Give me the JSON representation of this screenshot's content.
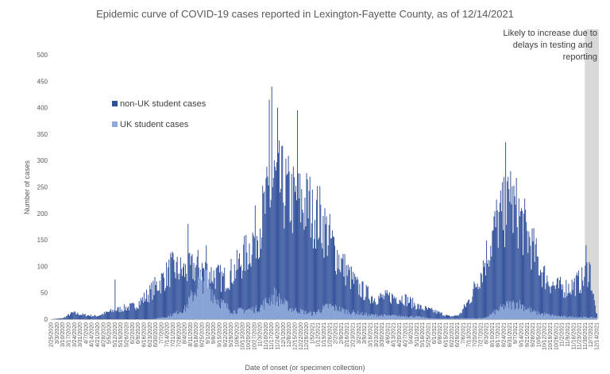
{
  "chart_data": {
    "type": "bar",
    "stacked": true,
    "title": "Epidemic curve of COVID-19 cases reported in Lexington-Fayette County, as of 12/14/2021",
    "xlabel": "Date of onset (or specimen collection)",
    "ylabel": "Number of cases",
    "ylim": [
      0,
      500
    ],
    "y_ticks": [
      0,
      50,
      100,
      150,
      200,
      250,
      300,
      350,
      400,
      450,
      500
    ],
    "grid": false,
    "legend_position": "top-left",
    "x_range": [
      "2/25/2020",
      "12/14/2021"
    ],
    "x_tick_interval_days": 7,
    "series": [
      {
        "name": "non-UK student cases",
        "color": "#2F4F9A",
        "description": "daily counts interpolated between anchor points (date, cases)",
        "anchors": [
          [
            "2020-02-25",
            0
          ],
          [
            "2020-03-10",
            2
          ],
          [
            "2020-03-22",
            12
          ],
          [
            "2020-04-05",
            8
          ],
          [
            "2020-04-20",
            6
          ],
          [
            "2020-05-05",
            14
          ],
          [
            "2020-05-20",
            20
          ],
          [
            "2020-06-05",
            25
          ],
          [
            "2020-06-20",
            45
          ],
          [
            "2020-07-05",
            70
          ],
          [
            "2020-07-20",
            95
          ],
          [
            "2020-08-05",
            90
          ],
          [
            "2020-08-20",
            100
          ],
          [
            "2020-09-05",
            85
          ],
          [
            "2020-09-20",
            75
          ],
          [
            "2020-10-05",
            95
          ],
          [
            "2020-10-20",
            130
          ],
          [
            "2020-11-05",
            190
          ],
          [
            "2020-11-20",
            260
          ],
          [
            "2020-12-01",
            245
          ],
          [
            "2020-12-15",
            220
          ],
          [
            "2021-01-01",
            215
          ],
          [
            "2021-01-15",
            190
          ],
          [
            "2021-02-01",
            130
          ],
          [
            "2021-02-15",
            90
          ],
          [
            "2021-03-01",
            60
          ],
          [
            "2021-03-20",
            40
          ],
          [
            "2021-04-10",
            42
          ],
          [
            "2021-04-25",
            40
          ],
          [
            "2021-05-15",
            22
          ],
          [
            "2021-06-01",
            15
          ],
          [
            "2021-06-20",
            5
          ],
          [
            "2021-07-01",
            8
          ],
          [
            "2021-07-15",
            40
          ],
          [
            "2021-08-01",
            110
          ],
          [
            "2021-08-15",
            180
          ],
          [
            "2021-08-31",
            215
          ],
          [
            "2021-09-10",
            200
          ],
          [
            "2021-09-25",
            145
          ],
          [
            "2021-10-10",
            85
          ],
          [
            "2021-10-25",
            60
          ],
          [
            "2021-11-10",
            60
          ],
          [
            "2021-11-28",
            75
          ],
          [
            "2021-12-05",
            100
          ],
          [
            "2021-12-10",
            40
          ],
          [
            "2021-12-14",
            8
          ]
        ],
        "spikes": [
          [
            "2020-05-12",
            75
          ],
          [
            "2020-07-18",
            125
          ],
          [
            "2020-08-08",
            180
          ],
          [
            "2020-08-30",
            140
          ],
          [
            "2020-11-14",
            415
          ],
          [
            "2020-11-17",
            440
          ],
          [
            "2020-11-24",
            400
          ],
          [
            "2020-12-18",
            395
          ],
          [
            "2021-01-05",
            245
          ],
          [
            "2021-08-26",
            335
          ],
          [
            "2021-09-01",
            280
          ],
          [
            "2021-12-01",
            140
          ]
        ]
      },
      {
        "name": "UK student cases",
        "color": "#8EA9DB",
        "description": "daily counts interpolated between anchor points (date, cases)",
        "anchors": [
          [
            "2020-02-25",
            0
          ],
          [
            "2020-06-25",
            0
          ],
          [
            "2020-07-15",
            5
          ],
          [
            "2020-08-05",
            20
          ],
          [
            "2020-08-20",
            65
          ],
          [
            "2020-08-28",
            85
          ],
          [
            "2020-09-10",
            40
          ],
          [
            "2020-10-01",
            15
          ],
          [
            "2020-11-01",
            20
          ],
          [
            "2020-11-20",
            45
          ],
          [
            "2020-12-10",
            20
          ],
          [
            "2021-01-05",
            10
          ],
          [
            "2021-01-25",
            25
          ],
          [
            "2021-02-15",
            15
          ],
          [
            "2021-03-15",
            8
          ],
          [
            "2021-05-10",
            5
          ],
          [
            "2021-06-01",
            1
          ],
          [
            "2021-08-01",
            2
          ],
          [
            "2021-08-25",
            25
          ],
          [
            "2021-09-10",
            30
          ],
          [
            "2021-10-01",
            12
          ],
          [
            "2021-11-01",
            5
          ],
          [
            "2021-12-14",
            3
          ]
        ]
      }
    ],
    "annotations": [
      {
        "text_lines": [
          "Likely to increase due to",
          "delays in testing and",
          "reporting"
        ],
        "shaded_range": [
          "2021-11-30",
          "2021-12-14"
        ]
      }
    ]
  }
}
